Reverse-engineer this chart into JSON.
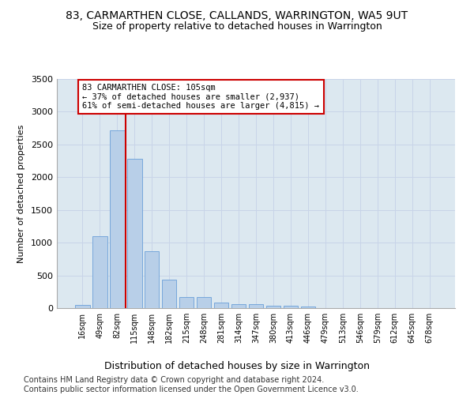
{
  "title": "83, CARMARTHEN CLOSE, CALLANDS, WARRINGTON, WA5 9UT",
  "subtitle": "Size of property relative to detached houses in Warrington",
  "xlabel": "Distribution of detached houses by size in Warrington",
  "ylabel": "Number of detached properties",
  "categories": [
    "16sqm",
    "49sqm",
    "82sqm",
    "115sqm",
    "148sqm",
    "182sqm",
    "215sqm",
    "248sqm",
    "281sqm",
    "314sqm",
    "347sqm",
    "380sqm",
    "413sqm",
    "446sqm",
    "479sqm",
    "513sqm",
    "546sqm",
    "579sqm",
    "612sqm",
    "645sqm",
    "678sqm"
  ],
  "values": [
    50,
    1100,
    2720,
    2280,
    870,
    430,
    165,
    165,
    90,
    65,
    55,
    40,
    35,
    25,
    5,
    5,
    0,
    0,
    0,
    0,
    0
  ],
  "bar_color": "#b8cfe8",
  "bar_edge_color": "#6a9fd8",
  "vline_color": "#cc0000",
  "vline_index": 2,
  "annotation_text": "83 CARMARTHEN CLOSE: 105sqm\n← 37% of detached houses are smaller (2,937)\n61% of semi-detached houses are larger (4,815) →",
  "annotation_box_color": "#ffffff",
  "annotation_border_color": "#cc0000",
  "ylim": [
    0,
    3500
  ],
  "yticks": [
    0,
    500,
    1000,
    1500,
    2000,
    2500,
    3000,
    3500
  ],
  "grid_color": "#c8d4e8",
  "bg_color": "#dce8f0",
  "title_fontsize": 10,
  "subtitle_fontsize": 9,
  "xlabel_fontsize": 9,
  "ylabel_fontsize": 8,
  "tick_fontsize": 7,
  "footer_text": "Contains HM Land Registry data © Crown copyright and database right 2024.\nContains public sector information licensed under the Open Government Licence v3.0.",
  "footer_fontsize": 7
}
